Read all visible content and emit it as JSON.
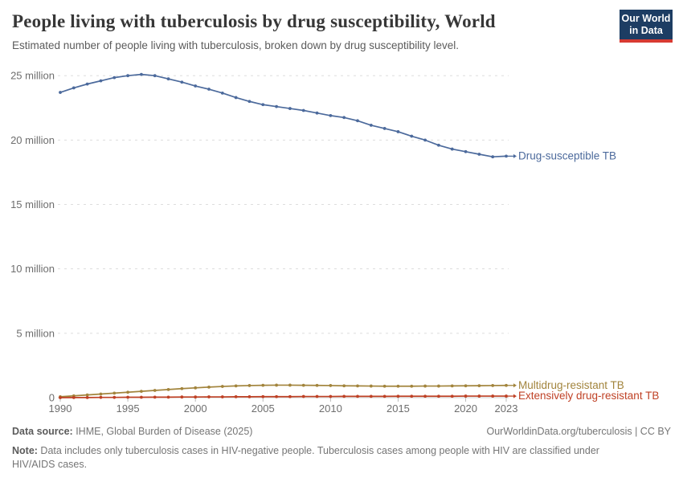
{
  "header": {
    "title": "People living with tuberculosis by drug susceptibility, World",
    "subtitle": "Estimated number of people living with tuberculosis, broken down by drug susceptibility level."
  },
  "logo": {
    "line1": "Our World",
    "line2": "in Data",
    "bg_color": "#1d3d63",
    "accent_color": "#d73a32"
  },
  "chart_data": {
    "type": "line",
    "title": "People living with tuberculosis by drug susceptibility, World",
    "unit": "million",
    "grid": true,
    "legend_position": "labels-at-line-ends",
    "ylim": [
      0,
      25
    ],
    "xlim": [
      1990,
      2023
    ],
    "yticks": [
      {
        "value": 0,
        "label": "0"
      },
      {
        "value": 5,
        "label": "5 million"
      },
      {
        "value": 10,
        "label": "10 million"
      },
      {
        "value": 15,
        "label": "15 million"
      },
      {
        "value": 20,
        "label": "20 million"
      },
      {
        "value": 25,
        "label": "25 million"
      }
    ],
    "xticks": [
      1990,
      1995,
      2000,
      2005,
      2010,
      2015,
      2020,
      2023
    ],
    "x": [
      1990,
      1991,
      1992,
      1993,
      1994,
      1995,
      1996,
      1997,
      1998,
      1999,
      2000,
      2001,
      2002,
      2003,
      2004,
      2005,
      2006,
      2007,
      2008,
      2009,
      2010,
      2011,
      2012,
      2013,
      2014,
      2015,
      2016,
      2017,
      2018,
      2019,
      2020,
      2021,
      2022,
      2023
    ],
    "series": [
      {
        "name": "Drug-susceptible TB",
        "color": "#4c6a9c",
        "values": [
          23.7,
          24.05,
          24.35,
          24.6,
          24.85,
          25.0,
          25.1,
          25.0,
          24.75,
          24.5,
          24.2,
          23.95,
          23.65,
          23.3,
          23.0,
          22.75,
          22.6,
          22.45,
          22.3,
          22.1,
          21.9,
          21.75,
          21.5,
          21.15,
          20.9,
          20.65,
          20.3,
          20.0,
          19.6,
          19.3,
          19.1,
          18.9,
          18.7,
          18.75
        ]
      },
      {
        "name": "Multidrug-resistant TB",
        "color": "#a2843c",
        "values": [
          0.07,
          0.14,
          0.21,
          0.28,
          0.35,
          0.42,
          0.49,
          0.56,
          0.63,
          0.7,
          0.76,
          0.82,
          0.87,
          0.91,
          0.94,
          0.96,
          0.97,
          0.97,
          0.96,
          0.95,
          0.94,
          0.92,
          0.91,
          0.9,
          0.89,
          0.89,
          0.89,
          0.9,
          0.9,
          0.91,
          0.92,
          0.93,
          0.94,
          0.95
        ]
      },
      {
        "name": "Extensively drug-resistant TB",
        "color": "#bf4125",
        "values": [
          0.0,
          0.01,
          0.01,
          0.02,
          0.02,
          0.03,
          0.03,
          0.04,
          0.04,
          0.05,
          0.05,
          0.06,
          0.06,
          0.07,
          0.07,
          0.08,
          0.08,
          0.08,
          0.09,
          0.09,
          0.09,
          0.1,
          0.1,
          0.1,
          0.1,
          0.11,
          0.11,
          0.11,
          0.11,
          0.11,
          0.12,
          0.12,
          0.12,
          0.12
        ]
      }
    ]
  },
  "footer": {
    "source_label": "Data source:",
    "source_text": " IHME, Global Burden of Disease (2025)",
    "attribution": "OurWorldinData.org/tuberculosis | CC BY",
    "note_label": "Note:",
    "note_text": " Data includes only tuberculosis cases in HIV-negative people. Tuberculosis cases among people with HIV are classified under HIV/AIDS cases."
  }
}
